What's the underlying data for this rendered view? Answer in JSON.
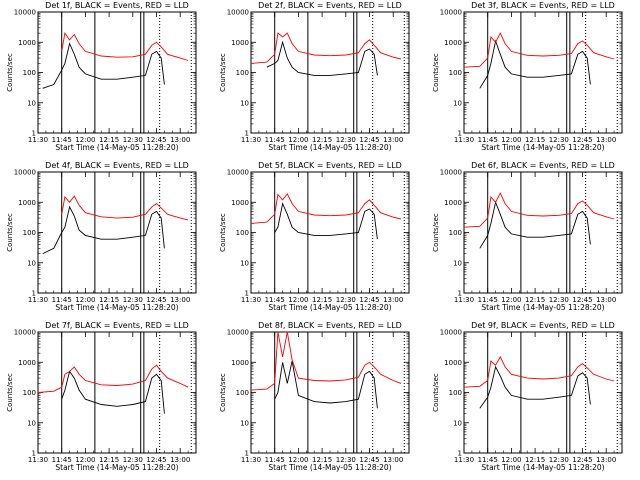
{
  "chart_data": {
    "type": "line",
    "y_scale": "log",
    "ylim": [
      1,
      10000
    ],
    "xlim": [
      "11:30",
      "13:10"
    ],
    "x_ticks": [
      "11:30",
      "11:45",
      "12:00",
      "12:15",
      "12:30",
      "12:45",
      "13:00"
    ],
    "y_ticks": [
      "1",
      "10",
      "100",
      "1000",
      "10000"
    ],
    "xlabel": "Start Time (14-May-05 11:28:20)",
    "ylabel": "Counts/sec",
    "legend": "BLACK = Events, RED = LLD",
    "series_colors": {
      "events": "#000000",
      "lld": "#ff0000"
    },
    "solid_markers": [
      "11:45",
      "12:06",
      "12:35",
      "12:37"
    ],
    "dotted_markers": [
      "12:47",
      "13:07"
    ],
    "panels": [
      {
        "title": "Det 1f, BLACK = Events, RED = LLD",
        "series": [
          {
            "name": "Events",
            "x": [
              "11:33",
              "11:40",
              "11:45",
              "11:47",
              "11:50",
              "11:53",
              "11:56",
              "12:00",
              "12:10",
              "12:20",
              "12:30",
              "12:38",
              "12:42",
              "12:45",
              "12:48",
              "12:50"
            ],
            "values": [
              30,
              40,
              120,
              200,
              900,
              400,
              150,
              90,
              60,
              60,
              70,
              80,
              400,
              500,
              300,
              40
            ]
          },
          {
            "name": "LLD",
            "x": [
              "11:45",
              "11:47",
              "11:50",
              "11:53",
              "11:56",
              "12:00",
              "12:10",
              "12:20",
              "12:30",
              "12:38",
              "12:42",
              "12:45",
              "12:48",
              "12:52",
              "13:00",
              "13:05"
            ],
            "values": [
              500,
              2000,
              1200,
              1800,
              900,
              500,
              350,
              320,
              330,
              400,
              800,
              1000,
              700,
              400,
              300,
              250
            ]
          }
        ]
      },
      {
        "title": "Det 2f, BLACK = Events, RED = LLD",
        "series": [
          {
            "name": "Events",
            "x": [
              "11:40",
              "11:45",
              "11:47",
              "11:50",
              "11:53",
              "11:56",
              "12:00",
              "12:10",
              "12:20",
              "12:30",
              "12:38",
              "12:42",
              "12:45",
              "12:48",
              "12:50"
            ],
            "values": [
              150,
              200,
              250,
              1000,
              300,
              150,
              100,
              80,
              80,
              90,
              100,
              500,
              600,
              400,
              80
            ]
          },
          {
            "name": "LLD",
            "x": [
              "11:30",
              "11:40",
              "11:45",
              "11:47",
              "11:50",
              "11:53",
              "11:56",
              "12:00",
              "12:10",
              "12:20",
              "12:30",
              "12:38",
              "12:42",
              "12:45",
              "12:48",
              "12:52",
              "13:00",
              "13:05"
            ],
            "values": [
              200,
              220,
              400,
              2000,
              1500,
              2000,
              900,
              500,
              380,
              360,
              380,
              450,
              900,
              1200,
              800,
              450,
              320,
              280
            ]
          }
        ]
      },
      {
        "title": "Det 3f, BLACK = Events, RED = LLD",
        "series": [
          {
            "name": "Events",
            "x": [
              "11:40",
              "11:45",
              "11:47",
              "11:50",
              "11:53",
              "11:56",
              "12:00",
              "12:10",
              "12:20",
              "12:30",
              "12:38",
              "12:42",
              "12:45",
              "12:48",
              "12:50"
            ],
            "values": [
              30,
              80,
              200,
              1100,
              400,
              150,
              90,
              70,
              70,
              80,
              90,
              400,
              500,
              300,
              40
            ]
          },
          {
            "name": "LLD",
            "x": [
              "11:30",
              "11:40",
              "11:45",
              "11:47",
              "11:50",
              "11:53",
              "11:56",
              "12:00",
              "12:10",
              "12:20",
              "12:30",
              "12:38",
              "12:42",
              "12:45",
              "12:48",
              "12:52",
              "13:00",
              "13:05"
            ],
            "values": [
              150,
              160,
              300,
              1500,
              1000,
              2000,
              900,
              500,
              370,
              350,
              370,
              420,
              900,
              1100,
              800,
              450,
              330,
              280
            ]
          }
        ]
      },
      {
        "title": "Det 4f, BLACK = Events, RED = LLD",
        "series": [
          {
            "name": "Events",
            "x": [
              "11:33",
              "11:40",
              "11:45",
              "11:47",
              "11:50",
              "11:53",
              "11:56",
              "12:00",
              "12:10",
              "12:20",
              "12:30",
              "12:38",
              "12:42",
              "12:45",
              "12:48",
              "12:50"
            ],
            "values": [
              20,
              30,
              100,
              150,
              700,
              350,
              120,
              80,
              60,
              60,
              70,
              80,
              400,
              500,
              300,
              30
            ]
          },
          {
            "name": "LLD",
            "x": [
              "11:45",
              "11:47",
              "11:50",
              "11:53",
              "11:56",
              "12:00",
              "12:10",
              "12:20",
              "12:30",
              "12:38",
              "12:42",
              "12:45",
              "12:48",
              "12:52",
              "13:00",
              "13:05"
            ],
            "values": [
              400,
              1500,
              1000,
              1600,
              800,
              450,
              330,
              300,
              320,
              400,
              700,
              900,
              650,
              400,
              300,
              260
            ]
          }
        ]
      },
      {
        "title": "Det 5f, BLACK = Events, RED = LLD",
        "series": [
          {
            "name": "Events",
            "x": [
              "11:45",
              "11:47",
              "11:50",
              "11:53",
              "11:56",
              "12:00",
              "12:10",
              "12:20",
              "12:30",
              "12:38",
              "12:42",
              "12:45",
              "12:48",
              "12:50"
            ],
            "values": [
              100,
              150,
              900,
              400,
              150,
              100,
              80,
              80,
              90,
              100,
              500,
              600,
              400,
              60
            ]
          },
          {
            "name": "LLD",
            "x": [
              "11:30",
              "11:40",
              "11:45",
              "11:47",
              "11:50",
              "11:53",
              "11:56",
              "12:00",
              "12:10",
              "12:20",
              "12:30",
              "12:38",
              "12:42",
              "12:45",
              "12:48",
              "12:52",
              "13:00",
              "13:05"
            ],
            "values": [
              200,
              220,
              400,
              1800,
              1200,
              1900,
              900,
              500,
              380,
              360,
              380,
              450,
              900,
              1200,
              800,
              450,
              320,
              280
            ]
          }
        ]
      },
      {
        "title": "Det 6f, BLACK = Events, RED = LLD",
        "series": [
          {
            "name": "Events",
            "x": [
              "11:40",
              "11:45",
              "11:47",
              "11:50",
              "11:53",
              "11:56",
              "12:00",
              "12:10",
              "12:20",
              "12:30",
              "12:38",
              "12:42",
              "12:45",
              "12:48",
              "12:50"
            ],
            "values": [
              30,
              80,
              200,
              1000,
              400,
              150,
              90,
              70,
              70,
              80,
              90,
              400,
              500,
              300,
              40
            ]
          },
          {
            "name": "LLD",
            "x": [
              "11:30",
              "11:40",
              "11:45",
              "11:47",
              "11:50",
              "11:53",
              "11:56",
              "12:00",
              "12:10",
              "12:20",
              "12:30",
              "12:38",
              "12:42",
              "12:45",
              "12:48",
              "12:52",
              "13:00",
              "13:05"
            ],
            "values": [
              150,
              160,
              300,
              1500,
              1000,
              2000,
              900,
              500,
              370,
              350,
              370,
              420,
              900,
              1100,
              800,
              450,
              330,
              280
            ]
          }
        ]
      },
      {
        "title": "Det 7f, BLACK = Events, RED = LLD",
        "series": [
          {
            "name": "Events",
            "x": [
              "11:45",
              "11:47",
              "11:50",
              "11:53",
              "11:56",
              "12:00",
              "12:10",
              "12:20",
              "12:30",
              "12:38",
              "12:42",
              "12:45",
              "12:48",
              "12:50"
            ],
            "values": [
              60,
              120,
              500,
              300,
              120,
              60,
              40,
              35,
              40,
              50,
              300,
              400,
              250,
              20
            ]
          },
          {
            "name": "LLD",
            "x": [
              "11:30",
              "11:40",
              "11:45",
              "11:47",
              "11:50",
              "11:53",
              "11:56",
              "12:00",
              "12:10",
              "12:20",
              "12:30",
              "12:38",
              "12:42",
              "12:45",
              "12:48",
              "12:52",
              "13:00",
              "13:05"
            ],
            "values": [
              100,
              110,
              150,
              400,
              500,
              700,
              400,
              250,
              180,
              170,
              190,
              250,
              600,
              800,
              500,
              300,
              200,
              150
            ]
          }
        ]
      },
      {
        "title": "Det 8f, BLACK = Events, RED = LLD",
        "series": [
          {
            "name": "Events",
            "x": [
              "11:45",
              "11:47",
              "11:50",
              "11:53",
              "11:56",
              "12:00",
              "12:10",
              "12:20",
              "12:30",
              "12:38",
              "12:42",
              "12:45",
              "12:48",
              "12:50"
            ],
            "values": [
              60,
              100,
              1000,
              200,
              1100,
              80,
              50,
              45,
              50,
              60,
              400,
              500,
              300,
              30
            ]
          },
          {
            "name": "LLD",
            "x": [
              "11:30",
              "11:40",
              "11:45",
              "11:47",
              "11:50",
              "11:53",
              "11:56",
              "12:00",
              "12:10",
              "12:20",
              "12:30",
              "12:38",
              "12:42",
              "12:45",
              "12:48",
              "12:52",
              "13:00",
              "13:05"
            ],
            "values": [
              120,
              130,
              200,
              10000,
              1500,
              10000,
              1200,
              300,
              250,
              240,
              260,
              320,
              800,
              1000,
              700,
              400,
              250,
              200
            ]
          }
        ]
      },
      {
        "title": "Det 9f, BLACK = Events, RED = LLD",
        "series": [
          {
            "name": "Events",
            "x": [
              "11:40",
              "11:45",
              "11:47",
              "11:50",
              "11:53",
              "11:56",
              "12:00",
              "12:10",
              "12:20",
              "12:30",
              "12:38",
              "12:42",
              "12:45",
              "12:48",
              "12:50"
            ],
            "values": [
              30,
              70,
              150,
              700,
              350,
              150,
              80,
              60,
              60,
              70,
              80,
              350,
              450,
              300,
              40
            ]
          },
          {
            "name": "LLD",
            "x": [
              "11:30",
              "11:40",
              "11:45",
              "11:47",
              "11:50",
              "11:53",
              "11:56",
              "12:00",
              "12:10",
              "12:20",
              "12:30",
              "12:38",
              "12:42",
              "12:45",
              "12:48",
              "12:52",
              "13:00",
              "13:05"
            ],
            "values": [
              150,
              160,
              250,
              1100,
              800,
              1500,
              700,
              400,
              300,
              280,
              300,
              360,
              700,
              900,
              650,
              400,
              280,
              240
            ]
          }
        ]
      }
    ]
  }
}
